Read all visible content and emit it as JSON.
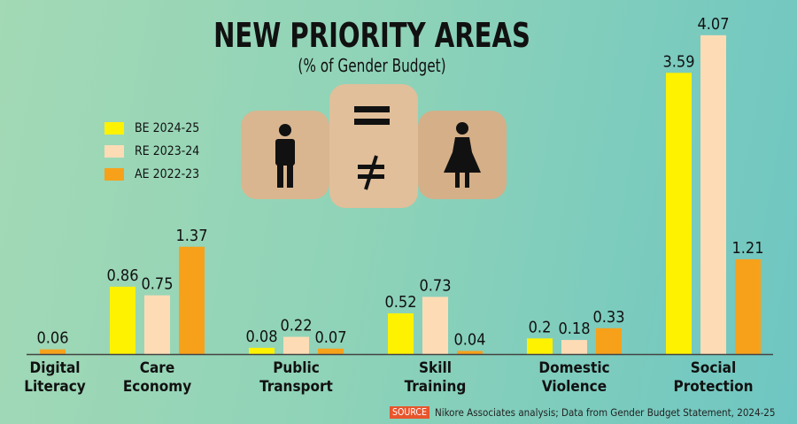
{
  "chart_data": {
    "type": "bar",
    "title": "NEW PRIORITY AREAS",
    "subtitle": "(% of Gender Budget)",
    "xlabel": "",
    "ylabel": "",
    "ylim": [
      0,
      4.2
    ],
    "grid": false,
    "legend_placement": "top-left",
    "categories": [
      [
        "Digital",
        "Literacy"
      ],
      [
        "Care",
        "Economy"
      ],
      [
        "Public",
        "Transport"
      ],
      [
        "Skill",
        "Training"
      ],
      [
        "Domestic",
        "Violence"
      ],
      [
        "Social",
        "Protection"
      ]
    ],
    "series": [
      {
        "name": "BE 2024-25",
        "color": "#fff200",
        "values": [
          null,
          0.86,
          0.08,
          0.52,
          0.2,
          3.59
        ]
      },
      {
        "name": "RE 2023-24",
        "color": "#fddcb5",
        "values": [
          null,
          0.75,
          0.22,
          0.73,
          0.18,
          4.07
        ]
      },
      {
        "name": "AE 2022-23",
        "color": "#f7a11a",
        "values": [
          0.06,
          1.37,
          0.07,
          0.04,
          0.33,
          1.21
        ]
      }
    ]
  },
  "source": {
    "tag": "SOURCE",
    "text": "Nikore Associates analysis; Data from Gender Budget Statement, 2024-25"
  }
}
